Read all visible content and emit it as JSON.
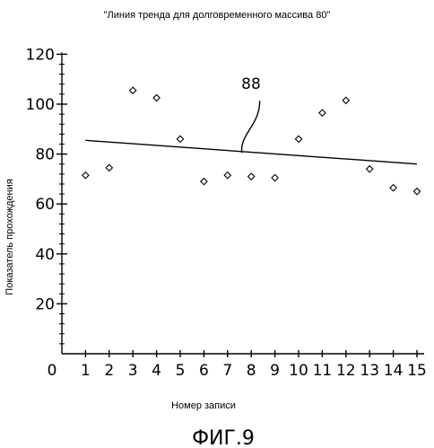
{
  "chart_data": {
    "type": "scatter",
    "title": "\"Линия тренда для долговременного массива 80\"",
    "xlabel": "Номер записи",
    "ylabel": "Показатель прохождения",
    "xlim": [
      0,
      15
    ],
    "ylim": [
      0,
      120
    ],
    "x_ticks": [
      0,
      1,
      2,
      3,
      4,
      5,
      6,
      7,
      8,
      9,
      10,
      11,
      12,
      13,
      14,
      15
    ],
    "y_ticks": [
      20,
      40,
      60,
      80,
      100,
      120
    ],
    "grid": false,
    "series": [
      {
        "marker": "diamond",
        "x": [
          1,
          2,
          3,
          4,
          5,
          6,
          7,
          8,
          9,
          10,
          11,
          12,
          13,
          14,
          15
        ],
        "y": [
          71.5,
          74.5,
          105.5,
          102.5,
          86,
          69,
          71.5,
          71,
          70.5,
          86,
          96.5,
          101.5,
          74,
          66.5,
          65
        ]
      }
    ],
    "trend_line": {
      "x": [
        1,
        15
      ],
      "y": [
        85.5,
        76
      ]
    },
    "annotation": {
      "text": "88",
      "x": 7.6,
      "y": 80.5
    }
  },
  "figure_label": "ФИГ.9"
}
